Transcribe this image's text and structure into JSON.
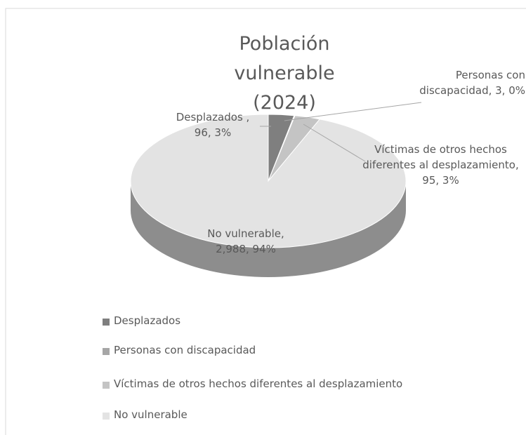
{
  "chart_data": {
    "type": "pie",
    "title": "Población vulnerable (2024)",
    "categories": [
      "Desplazados",
      "Personas con discapacidad",
      "Víctimas de otros hechos diferentes al desplazamiento",
      "No vulnerable"
    ],
    "values": [
      96,
      3,
      95,
      2988
    ],
    "value_labels": [
      "Desplazados , 96, 3%",
      "Personas con discapacidad, 3, 0%",
      "Víctimas de otros hechos diferentes al desplazamiento, 95, 3%",
      "No vulnerable, 2,988, 94%"
    ],
    "colors": [
      "#7f7f7f",
      "#a6a6a6",
      "#c4c4c4",
      "#e3e3e3"
    ],
    "legend": "bottom"
  }
}
